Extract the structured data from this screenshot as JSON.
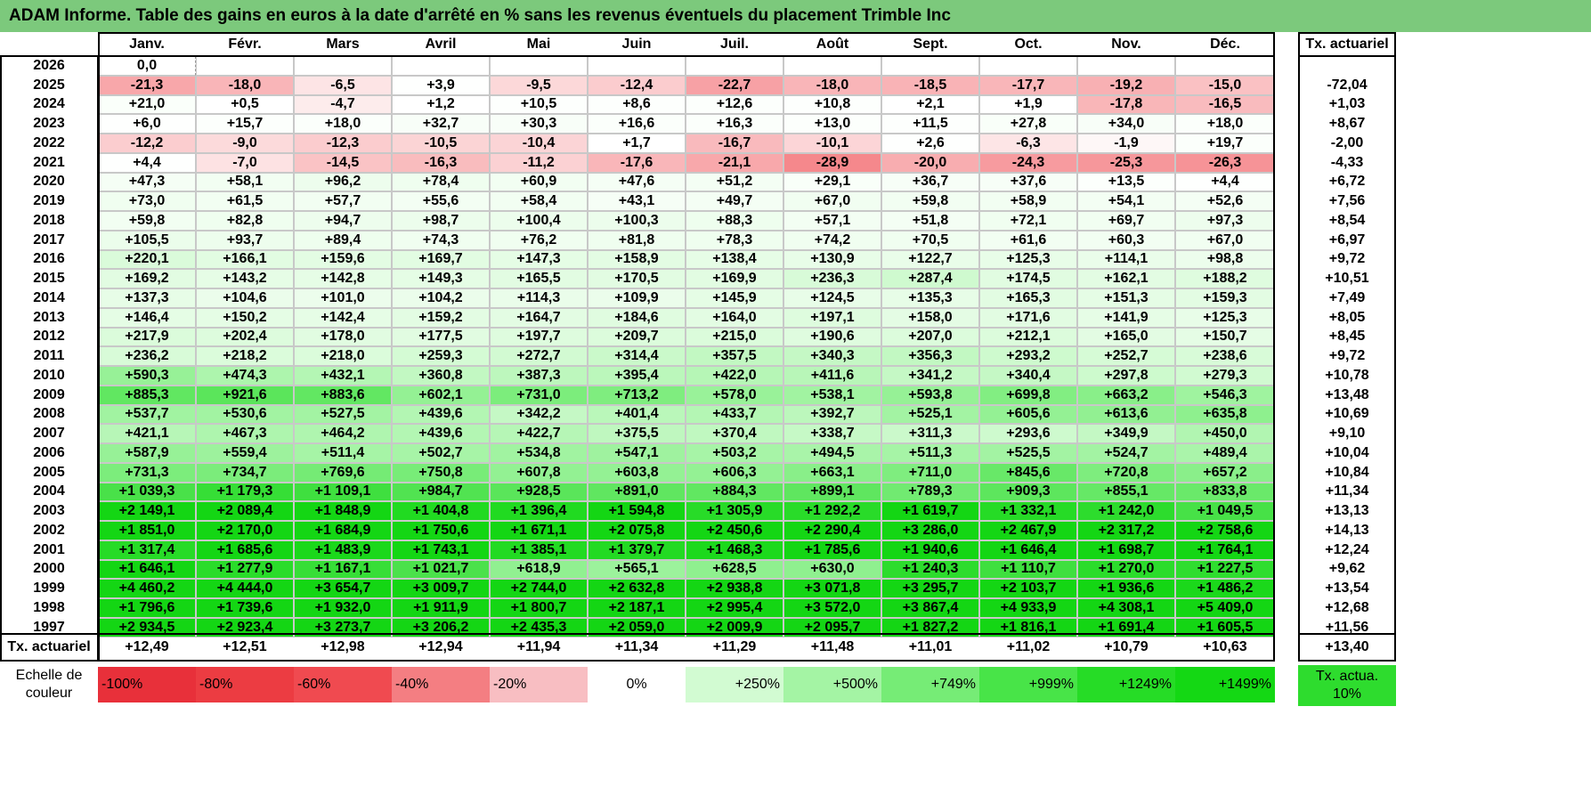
{
  "title": "ADAM Informe. Table des gains en euros à la date d'arrêté en % sans les revenus éventuels du placement Trimble Inc",
  "months": [
    "Janv.",
    "Févr.",
    "Mars",
    "Avril",
    "Mai",
    "Juin",
    "Juil.",
    "Août",
    "Sept.",
    "Oct.",
    "Nov.",
    "Déc."
  ],
  "rate_header": "Tx. actuariel",
  "rows": [
    {
      "year": "2026",
      "values": [
        "0,0",
        "",
        "",
        "",
        "",
        "",
        "",
        "",
        "",
        "",
        "",
        ""
      ],
      "rate": ""
    },
    {
      "year": "2025",
      "values": [
        "-21,3",
        "-18,0",
        "-6,5",
        "+3,9",
        "-9,5",
        "-12,4",
        "-22,7",
        "-18,0",
        "-18,5",
        "-17,7",
        "-19,2",
        "-15,0"
      ],
      "rate": "-72,04"
    },
    {
      "year": "2024",
      "values": [
        "+21,0",
        "+0,5",
        "-4,7",
        "+1,2",
        "+10,5",
        "+8,6",
        "+12,6",
        "+10,8",
        "+2,1",
        "+1,9",
        "-17,8",
        "-16,5"
      ],
      "rate": "+1,03"
    },
    {
      "year": "2023",
      "values": [
        "+6,0",
        "+15,7",
        "+18,0",
        "+32,7",
        "+30,3",
        "+16,6",
        "+16,3",
        "+13,0",
        "+11,5",
        "+27,8",
        "+34,0",
        "+18,0"
      ],
      "rate": "+8,67"
    },
    {
      "year": "2022",
      "values": [
        "-12,2",
        "-9,0",
        "-12,3",
        "-10,5",
        "-10,4",
        "+1,7",
        "-16,7",
        "-10,1",
        "+2,6",
        "-6,3",
        "-1,9",
        "+19,7"
      ],
      "rate": "-2,00"
    },
    {
      "year": "2021",
      "values": [
        "+4,4",
        "-7,0",
        "-14,5",
        "-16,3",
        "-11,2",
        "-17,6",
        "-21,1",
        "-28,9",
        "-20,0",
        "-24,3",
        "-25,3",
        "-26,3"
      ],
      "rate": "-4,33"
    },
    {
      "year": "2020",
      "values": [
        "+47,3",
        "+58,1",
        "+96,2",
        "+78,4",
        "+60,9",
        "+47,6",
        "+51,2",
        "+29,1",
        "+36,7",
        "+37,6",
        "+13,5",
        "+4,4"
      ],
      "rate": "+6,72"
    },
    {
      "year": "2019",
      "values": [
        "+73,0",
        "+61,5",
        "+57,7",
        "+55,6",
        "+58,4",
        "+43,1",
        "+49,7",
        "+67,0",
        "+59,8",
        "+58,9",
        "+54,1",
        "+52,6"
      ],
      "rate": "+7,56"
    },
    {
      "year": "2018",
      "values": [
        "+59,8",
        "+82,8",
        "+94,7",
        "+98,7",
        "+100,4",
        "+100,3",
        "+88,3",
        "+57,1",
        "+51,8",
        "+72,1",
        "+69,7",
        "+97,3"
      ],
      "rate": "+8,54"
    },
    {
      "year": "2017",
      "values": [
        "+105,5",
        "+93,7",
        "+89,4",
        "+74,3",
        "+76,2",
        "+81,8",
        "+78,3",
        "+74,2",
        "+70,5",
        "+61,6",
        "+60,3",
        "+67,0"
      ],
      "rate": "+6,97"
    },
    {
      "year": "2016",
      "values": [
        "+220,1",
        "+166,1",
        "+159,6",
        "+169,7",
        "+147,3",
        "+158,9",
        "+138,4",
        "+130,9",
        "+122,7",
        "+125,3",
        "+114,1",
        "+98,8"
      ],
      "rate": "+9,72"
    },
    {
      "year": "2015",
      "values": [
        "+169,2",
        "+143,2",
        "+142,8",
        "+149,3",
        "+165,5",
        "+170,5",
        "+169,9",
        "+236,3",
        "+287,4",
        "+174,5",
        "+162,1",
        "+188,2"
      ],
      "rate": "+10,51"
    },
    {
      "year": "2014",
      "values": [
        "+137,3",
        "+104,6",
        "+101,0",
        "+104,2",
        "+114,3",
        "+109,9",
        "+145,9",
        "+124,5",
        "+135,3",
        "+165,3",
        "+151,3",
        "+159,3"
      ],
      "rate": "+7,49"
    },
    {
      "year": "2013",
      "values": [
        "+146,4",
        "+150,2",
        "+142,4",
        "+159,2",
        "+164,7",
        "+184,6",
        "+164,0",
        "+197,1",
        "+158,0",
        "+171,6",
        "+141,9",
        "+125,3"
      ],
      "rate": "+8,05"
    },
    {
      "year": "2012",
      "values": [
        "+217,9",
        "+202,4",
        "+178,0",
        "+177,5",
        "+197,7",
        "+209,7",
        "+215,0",
        "+190,6",
        "+207,0",
        "+212,1",
        "+165,0",
        "+150,7"
      ],
      "rate": "+8,45"
    },
    {
      "year": "2011",
      "values": [
        "+236,2",
        "+218,2",
        "+218,0",
        "+259,3",
        "+272,7",
        "+314,4",
        "+357,5",
        "+340,3",
        "+356,3",
        "+293,2",
        "+252,7",
        "+238,6"
      ],
      "rate": "+9,72"
    },
    {
      "year": "2010",
      "values": [
        "+590,3",
        "+474,3",
        "+432,1",
        "+360,8",
        "+387,3",
        "+395,4",
        "+422,0",
        "+411,6",
        "+341,2",
        "+340,4",
        "+297,8",
        "+279,3"
      ],
      "rate": "+10,78"
    },
    {
      "year": "2009",
      "values": [
        "+885,3",
        "+921,6",
        "+883,6",
        "+602,1",
        "+731,0",
        "+713,2",
        "+578,0",
        "+538,1",
        "+593,8",
        "+699,8",
        "+663,2",
        "+546,3"
      ],
      "rate": "+13,48"
    },
    {
      "year": "2008",
      "values": [
        "+537,7",
        "+530,6",
        "+527,5",
        "+439,6",
        "+342,2",
        "+401,4",
        "+433,7",
        "+392,7",
        "+525,1",
        "+605,6",
        "+613,6",
        "+635,8"
      ],
      "rate": "+10,69"
    },
    {
      "year": "2007",
      "values": [
        "+421,1",
        "+467,3",
        "+464,2",
        "+439,6",
        "+422,7",
        "+375,5",
        "+370,4",
        "+338,7",
        "+311,3",
        "+293,6",
        "+349,9",
        "+450,0"
      ],
      "rate": "+9,10"
    },
    {
      "year": "2006",
      "values": [
        "+587,9",
        "+559,4",
        "+511,4",
        "+502,7",
        "+534,8",
        "+547,1",
        "+503,2",
        "+494,5",
        "+511,3",
        "+525,5",
        "+524,7",
        "+489,4"
      ],
      "rate": "+10,04"
    },
    {
      "year": "2005",
      "values": [
        "+731,3",
        "+734,7",
        "+769,6",
        "+750,8",
        "+607,8",
        "+603,8",
        "+606,3",
        "+663,1",
        "+711,0",
        "+845,6",
        "+720,8",
        "+657,2"
      ],
      "rate": "+10,84"
    },
    {
      "year": "2004",
      "values": [
        "+1 039,3",
        "+1 179,3",
        "+1 109,1",
        "+984,7",
        "+928,5",
        "+891,0",
        "+884,3",
        "+899,1",
        "+789,3",
        "+909,3",
        "+855,1",
        "+833,8"
      ],
      "rate": "+11,34"
    },
    {
      "year": "2003",
      "values": [
        "+2 149,1",
        "+2 089,4",
        "+1 848,9",
        "+1 404,8",
        "+1 396,4",
        "+1 594,8",
        "+1 305,9",
        "+1 292,2",
        "+1 619,7",
        "+1 332,1",
        "+1 242,0",
        "+1 049,5"
      ],
      "rate": "+13,13"
    },
    {
      "year": "2002",
      "values": [
        "+1 851,0",
        "+2 170,0",
        "+1 684,9",
        "+1 750,6",
        "+1 671,1",
        "+2 075,8",
        "+2 450,6",
        "+2 290,4",
        "+3 286,0",
        "+2 467,9",
        "+2 317,2",
        "+2 758,6"
      ],
      "rate": "+14,13"
    },
    {
      "year": "2001",
      "values": [
        "+1 317,4",
        "+1 685,6",
        "+1 483,9",
        "+1 743,1",
        "+1 385,1",
        "+1 379,7",
        "+1 468,3",
        "+1 785,6",
        "+1 940,6",
        "+1 646,4",
        "+1 698,7",
        "+1 764,1"
      ],
      "rate": "+12,24"
    },
    {
      "year": "2000",
      "values": [
        "+1 646,1",
        "+1 277,9",
        "+1 167,1",
        "+1 021,7",
        "+618,9",
        "+565,1",
        "+628,5",
        "+630,0",
        "+1 240,3",
        "+1 110,7",
        "+1 270,0",
        "+1 227,5"
      ],
      "rate": "+9,62"
    },
    {
      "year": "1999",
      "values": [
        "+4 460,2",
        "+4 444,0",
        "+3 654,7",
        "+3 009,7",
        "+2 744,0",
        "+2 632,8",
        "+2 938,8",
        "+3 071,8",
        "+3 295,7",
        "+2 103,7",
        "+1 936,6",
        "+1 486,2"
      ],
      "rate": "+13,54"
    },
    {
      "year": "1998",
      "values": [
        "+1 796,6",
        "+1 739,6",
        "+1 932,0",
        "+1 911,9",
        "+1 800,7",
        "+2 187,1",
        "+2 995,4",
        "+3 572,0",
        "+3 867,4",
        "+4 933,9",
        "+4 308,1",
        "+5 409,0"
      ],
      "rate": "+12,68"
    },
    {
      "year": "1997",
      "values": [
        "+2 934,5",
        "+2 923,4",
        "+3 273,7",
        "+3 206,2",
        "+2 435,3",
        "+2 059,0",
        "+2 009,9",
        "+2 095,7",
        "+1 827,2",
        "+1 816,1",
        "+1 691,4",
        "+1 605,5"
      ],
      "rate": "+11,56"
    }
  ],
  "footer": {
    "label": "Tx. actuariel",
    "values": [
      "+12,49",
      "+12,51",
      "+12,98",
      "+12,94",
      "+11,94",
      "+11,34",
      "+11,29",
      "+11,48",
      "+11,01",
      "+11,02",
      "+10,79",
      "+10,63"
    ],
    "rate": "+13,40"
  },
  "legend": {
    "label": "Echelle de couleur",
    "items": [
      {
        "text": "-100%",
        "color": "#e8303a",
        "align": "left"
      },
      {
        "text": "-80%",
        "color": "#ec3c42",
        "align": "left"
      },
      {
        "text": "-60%",
        "color": "#f04a50",
        "align": "left"
      },
      {
        "text": "-40%",
        "color": "#f47e82",
        "align": "left"
      },
      {
        "text": "-20%",
        "color": "#f8bec2",
        "align": "left"
      },
      {
        "text": "0%",
        "color": "#ffffff",
        "align": "center"
      },
      {
        "text": "+250%",
        "color": "#d2fbd2",
        "align": "right"
      },
      {
        "text": "+500%",
        "color": "#a4f4a4",
        "align": "right"
      },
      {
        "text": "+749%",
        "color": "#76ec76",
        "align": "right"
      },
      {
        "text": "+999%",
        "color": "#48e448",
        "align": "right"
      },
      {
        "text": "+1249%",
        "color": "#26dc26",
        "align": "right"
      },
      {
        "text": "+1499%",
        "color": "#14d814",
        "align": "right"
      }
    ],
    "rate_label": "Tx. actua. 10%",
    "rate_color": "#2edc2e"
  },
  "colors": {
    "title_bg": "#7cc97c",
    "zero_cell": "#ffffff"
  }
}
